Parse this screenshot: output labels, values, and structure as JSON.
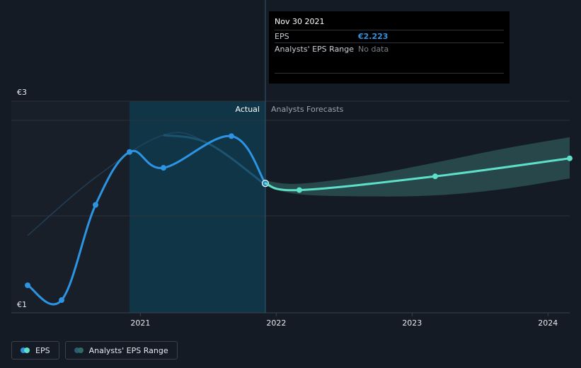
{
  "chart_data": {
    "type": "line",
    "title": "",
    "xlabel": "",
    "ylabel": "",
    "currency": "€",
    "ylim": [
      1,
      3
    ],
    "y_tick_labels": [
      "€3",
      "€1"
    ],
    "y_ticks": [
      3,
      1
    ],
    "x_range": [
      2020.05,
      2024.16
    ],
    "x_ticks": [
      2021,
      2022,
      2023,
      2024
    ],
    "x_tick_labels": [
      "2021",
      "2022",
      "2023",
      "2024"
    ],
    "regions": {
      "actual_label": "Actual",
      "forecast_label": "Analysts Forecasts",
      "highlight_start": 2020.92,
      "divider": 2021.92
    },
    "series": [
      {
        "name": "EPS",
        "color": "#2d94e3",
        "kind": "actual",
        "points": [
          {
            "x": 2020.17,
            "y": 1.26
          },
          {
            "x": 2020.42,
            "y": 1.12
          },
          {
            "x": 2020.67,
            "y": 2.02
          },
          {
            "x": 2020.92,
            "y": 2.52
          },
          {
            "x": 2021.17,
            "y": 2.37
          },
          {
            "x": 2021.67,
            "y": 2.67
          },
          {
            "x": 2021.92,
            "y": 2.223
          }
        ]
      },
      {
        "name": "EPS Forecast",
        "color": "#5ddfc8",
        "kind": "forecast",
        "points": [
          {
            "x": 2021.92,
            "y": 2.223
          },
          {
            "x": 2022.17,
            "y": 2.16
          },
          {
            "x": 2023.17,
            "y": 2.29
          },
          {
            "x": 2024.16,
            "y": 2.46
          }
        ]
      }
    ],
    "forecast_range": {
      "name": "Analysts' EPS Range",
      "x": [
        2021.92,
        2022.17,
        2022.67,
        2023.17,
        2023.67,
        2024.16
      ],
      "low": [
        2.2,
        2.12,
        2.1,
        2.11,
        2.17,
        2.27
      ],
      "high": [
        2.25,
        2.22,
        2.3,
        2.42,
        2.55,
        2.66
      ]
    },
    "faded_history_line": [
      {
        "x": 2020.17,
        "y": 1.73
      },
      {
        "x": 2020.67,
        "y": 2.28
      },
      {
        "x": 2021.17,
        "y": 2.68
      },
      {
        "x": 2021.5,
        "y": 2.6
      },
      {
        "x": 2021.92,
        "y": 2.21
      }
    ]
  },
  "tooltip": {
    "date": "Nov 30 2021",
    "rows": [
      {
        "key": "EPS",
        "value": "€2.223"
      },
      {
        "key": "Analysts' EPS Range",
        "value": "No data"
      }
    ]
  },
  "legend": {
    "items": [
      {
        "label": "EPS",
        "colors": [
          "#2d94e3",
          "#5ddfc8"
        ]
      },
      {
        "label": "Analysts' EPS Range",
        "colors": [
          "#2a5b70",
          "#2f6a66"
        ]
      }
    ]
  },
  "colors": {
    "background": "#151b24",
    "highlight": "#0f3a4c",
    "grid": "#2b323b",
    "range_fill": "#3d7f79"
  }
}
